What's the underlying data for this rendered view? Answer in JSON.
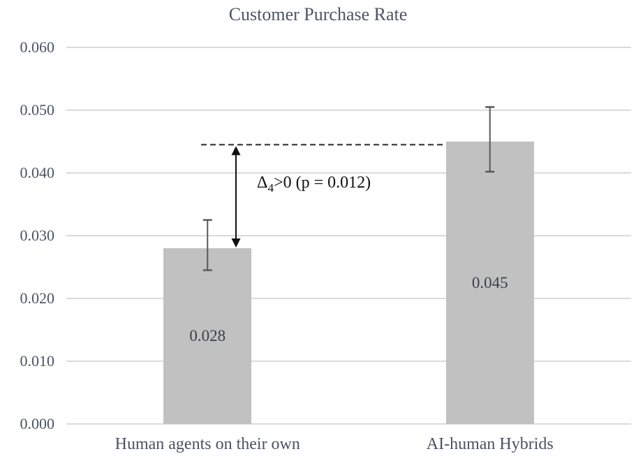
{
  "chart_data": {
    "type": "bar",
    "title": "Customer Purchase Rate",
    "categories": [
      "Human agents on their own",
      "AI-human Hybrids"
    ],
    "values": [
      0.028,
      0.045
    ],
    "value_labels": [
      "0.028",
      "0.045"
    ],
    "error_bars": {
      "upper": [
        0.0325,
        0.0505
      ],
      "lower": [
        0.0245,
        0.0402
      ]
    },
    "ylim": [
      0,
      0.06
    ],
    "ytick_step": 0.01,
    "ytick_labels": [
      "0.000",
      "0.010",
      "0.020",
      "0.030",
      "0.040",
      "0.050",
      "0.060"
    ],
    "xlabel": "",
    "ylabel": "",
    "grid": true,
    "legend": "none",
    "colors": {
      "bar_fill": "#c1c1c1",
      "gridline": "#dadada",
      "error_bar": "#595959",
      "axis_text": "#4a5260",
      "annotation_text": "#101010",
      "reference_line": "#262626"
    },
    "annotation": {
      "delta": "Δ",
      "sub": "4",
      "rest": ">0 (p = 0.012)",
      "full_text": "Δ4>0 (p = 0.012)",
      "dashed_line_value": 0.0445,
      "arrow_from_value": 0.0445,
      "arrow_to_value": 0.028
    }
  }
}
